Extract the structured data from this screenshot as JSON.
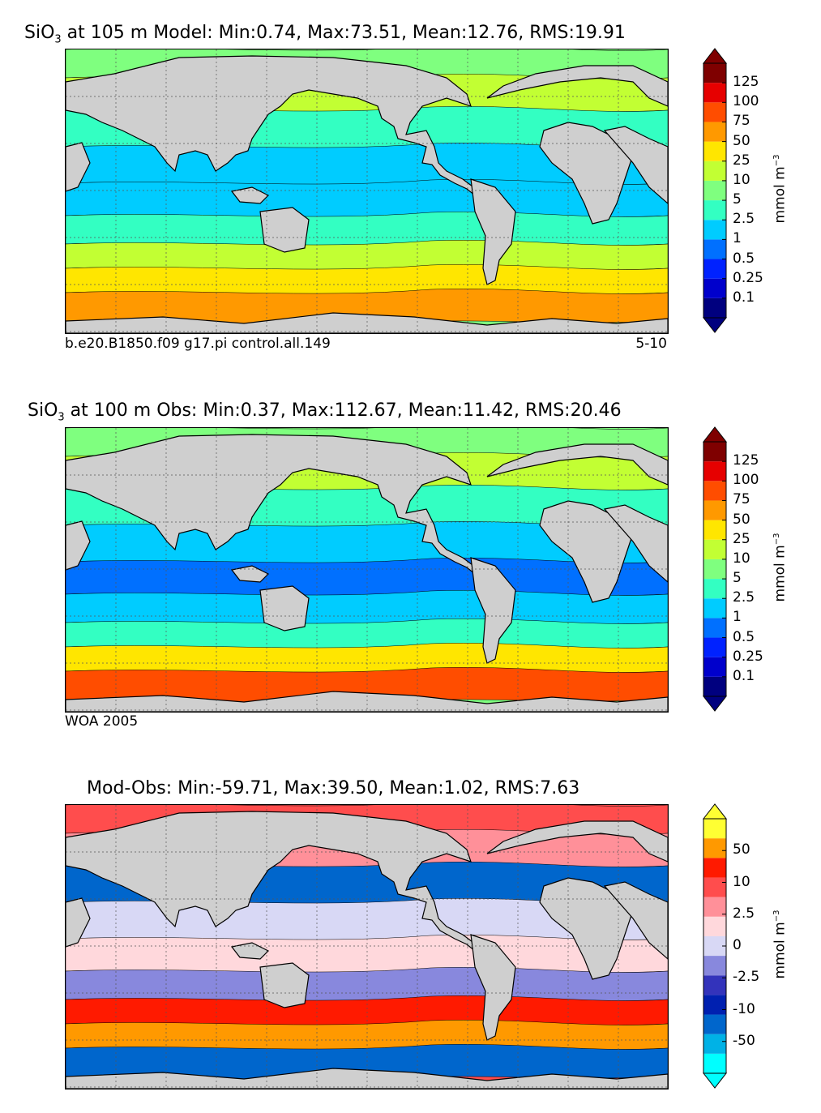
{
  "panels": [
    {
      "id": "model",
      "title_prefix": "SiO",
      "title_sub": "3",
      "title_rest": " at 105 m Model: Min:0.74, Max:73.51, Mean:12.76, RMS:19.91",
      "footer_left": "b.e20.B1850.f09 g17.pi control.all.149",
      "footer_right": "5-10",
      "colorbar": {
        "colors": [
          "#00007f",
          "#0000cc",
          "#0022ff",
          "#0070ff",
          "#00ccff",
          "#33ffc2",
          "#7fff7f",
          "#c2ff33",
          "#ffe600",
          "#ff9900",
          "#ff4d00",
          "#e60000",
          "#7f0000"
        ],
        "ticks": [
          "125",
          "100",
          "75",
          "50",
          "25",
          "10",
          "5",
          "2.5",
          "1",
          "0.5",
          "0.25",
          "0.1"
        ],
        "unit": "mmol m",
        "unit_exp": "−3"
      }
    },
    {
      "id": "obs",
      "title_prefix": "SiO",
      "title_sub": "3",
      "title_rest": " at 100 m Obs: Min:0.37, Max:112.67, Mean:11.42, RMS:20.46",
      "footer_left": "WOA 2005",
      "footer_right": "",
      "colorbar": {
        "colors": [
          "#00007f",
          "#0000cc",
          "#0022ff",
          "#0070ff",
          "#00ccff",
          "#33ffc2",
          "#7fff7f",
          "#c2ff33",
          "#ffe600",
          "#ff9900",
          "#ff4d00",
          "#e60000",
          "#7f0000"
        ],
        "ticks": [
          "125",
          "100",
          "75",
          "50",
          "25",
          "10",
          "5",
          "2.5",
          "1",
          "0.5",
          "0.25",
          "0.1"
        ],
        "unit": "mmol m",
        "unit_exp": "−3"
      }
    },
    {
      "id": "diff",
      "title_prefix": "",
      "title_sub": "",
      "title_rest": "Mod-Obs: Min:-59.71, Max:39.50, Mean:1.02, RMS:7.63",
      "footer_left": "",
      "footer_right": "",
      "colorbar": {
        "colors": [
          "#00ffff",
          "#00b2e6",
          "#0066cc",
          "#0020b0",
          "#3333bb",
          "#8888dd",
          "#d8d8f5",
          "#ffd8dc",
          "#ff9099",
          "#ff4d4d",
          "#ff1a00",
          "#ff9900",
          "#ffff33"
        ],
        "ticks": [
          "50",
          "10",
          "2.5",
          "0",
          "-2.5",
          "-10",
          "-50"
        ],
        "unit": "mmol m",
        "unit_exp": "−3"
      }
    }
  ]
}
